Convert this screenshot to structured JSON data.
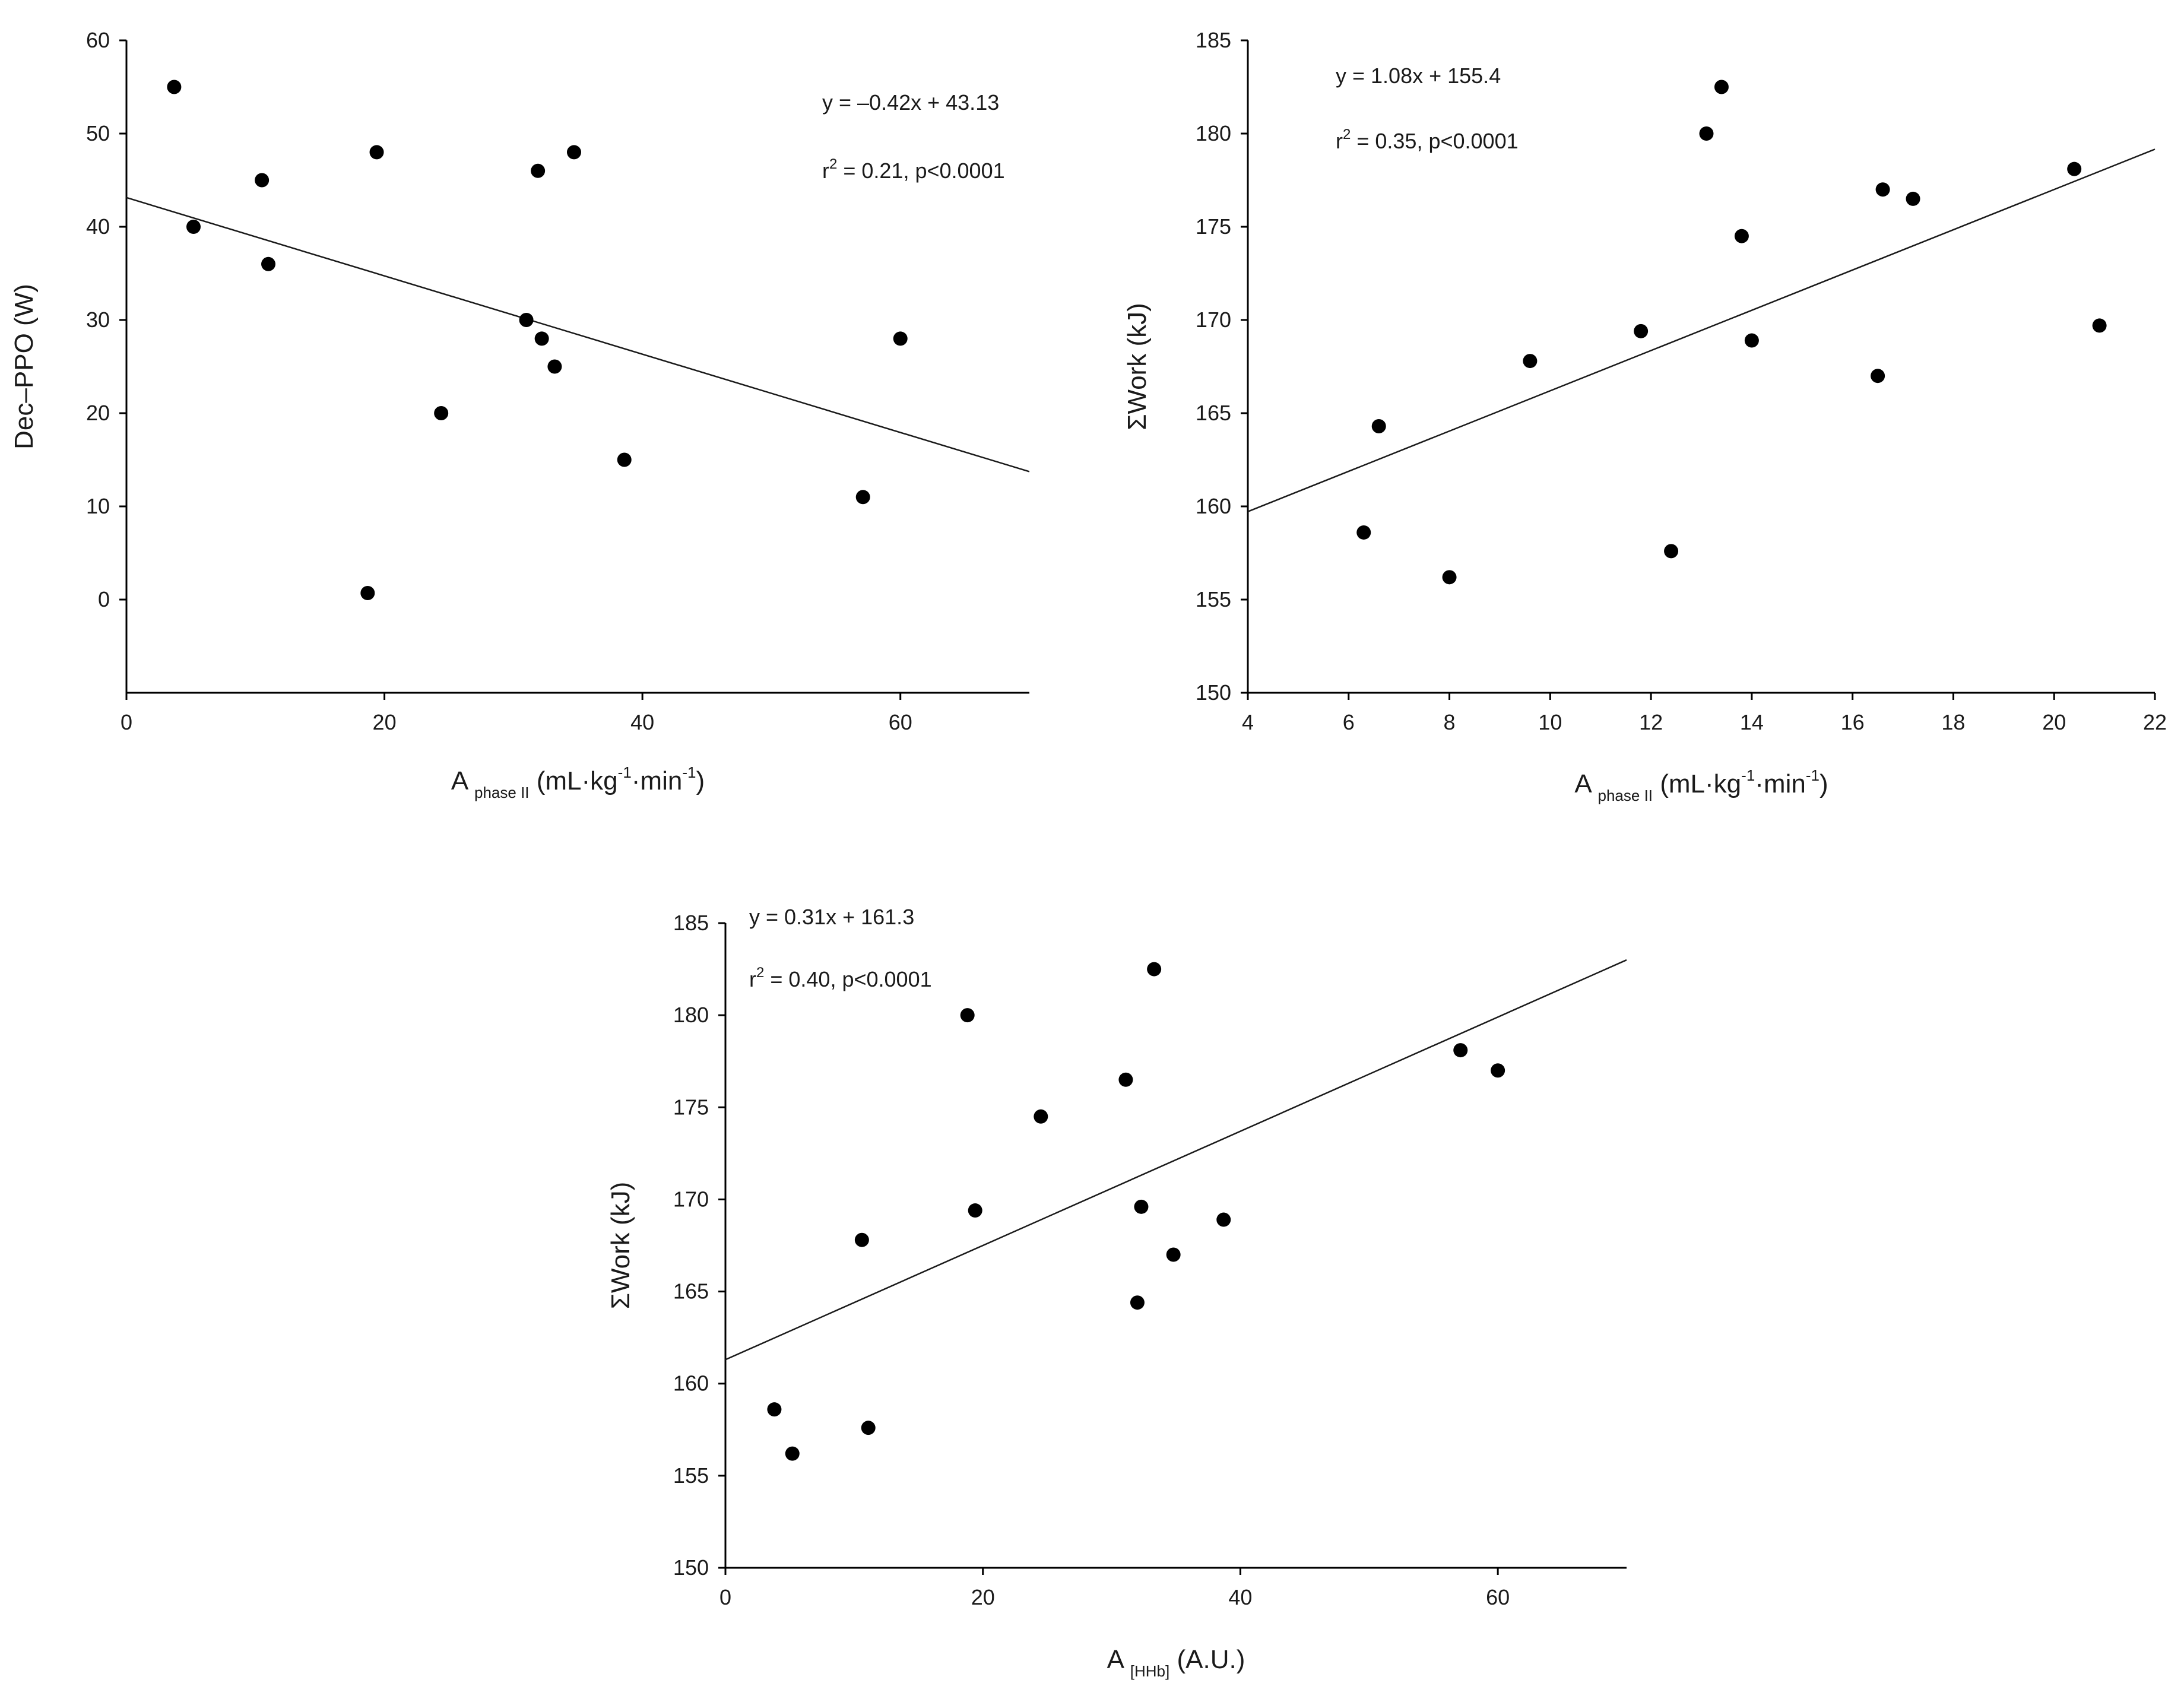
{
  "chart_data": [
    {
      "type": "scatter",
      "title": "",
      "xlabel": {
        "main": "A",
        "sub": "phase II",
        "unit": "(mL·kg",
        "sup1": "-1",
        "mid": "·min",
        "sup2": "-1",
        "end": ")"
      },
      "ylabel": "Dec–PPO (W)",
      "xlim": [
        0,
        70
      ],
      "ylim": [
        -10,
        60
      ],
      "xticks": [
        0,
        20,
        40,
        60
      ],
      "yticks": [
        0,
        10,
        20,
        30,
        40,
        50,
        60
      ],
      "equation": "y = –0.42x + 43.13",
      "r2_prefix": "r",
      "r2_sup": "2",
      "r2_rest": " = 0.21, p<0.0001",
      "fit": {
        "slope": -0.42,
        "intercept": 43.13,
        "x_range": [
          0,
          70
        ]
      },
      "points": [
        [
          3.7,
          55
        ],
        [
          5.2,
          40
        ],
        [
          10.5,
          45
        ],
        [
          11,
          36
        ],
        [
          18.7,
          0.7
        ],
        [
          19.4,
          48
        ],
        [
          24.4,
          20
        ],
        [
          31,
          30
        ],
        [
          31.9,
          46
        ],
        [
          32.2,
          28
        ],
        [
          33.2,
          25
        ],
        [
          34.7,
          48
        ],
        [
          38.6,
          15
        ],
        [
          57.1,
          11
        ],
        [
          60,
          28
        ]
      ]
    },
    {
      "type": "scatter",
      "title": "",
      "xlabel": {
        "main": "A",
        "sub": "phase II",
        "unit": "(mL·kg",
        "sup1": "-1",
        "mid": "·min",
        "sup2": "-1",
        "end": ")"
      },
      "ylabel": "ΣWork (kJ)",
      "xlim": [
        4,
        22
      ],
      "ylim": [
        150,
        185
      ],
      "xticks": [
        4,
        6,
        8,
        10,
        12,
        14,
        16,
        18,
        20,
        22
      ],
      "yticks": [
        150,
        155,
        160,
        165,
        170,
        175,
        180,
        185
      ],
      "equation": "y = 1.08x + 155.4",
      "r2_prefix": "r",
      "r2_sup": "2",
      "r2_rest": " = 0.35, p<0.0001",
      "fit": {
        "slope": 1.08,
        "intercept": 155.4,
        "x_range": [
          4,
          22
        ]
      },
      "points": [
        [
          6.3,
          158.6
        ],
        [
          6.6,
          164.3
        ],
        [
          8,
          156.2
        ],
        [
          9.6,
          167.8
        ],
        [
          11.8,
          169.4
        ],
        [
          12.4,
          157.6
        ],
        [
          13.1,
          180
        ],
        [
          13.4,
          182.5
        ],
        [
          13.8,
          174.5
        ],
        [
          14,
          168.9
        ],
        [
          16.5,
          167
        ],
        [
          16.6,
          177
        ],
        [
          17.2,
          176.5
        ],
        [
          20.4,
          178.1
        ],
        [
          20.9,
          169.7
        ]
      ]
    },
    {
      "type": "scatter",
      "title": "",
      "xlabel": {
        "main": "A",
        "sub": "[HHb]",
        "unit": "(A.U.)",
        "sup1": "",
        "mid": "",
        "sup2": "",
        "end": ""
      },
      "ylabel": "ΣWork (kJ)",
      "xlim": [
        0,
        70
      ],
      "ylim": [
        150,
        185
      ],
      "xticks": [
        0,
        20,
        40,
        60
      ],
      "yticks": [
        150,
        155,
        160,
        165,
        170,
        175,
        180,
        185
      ],
      "equation": "y = 0.31x + 161.3",
      "r2_prefix": "r",
      "r2_sup": "2",
      "r2_rest": " = 0.40, p<0.0001",
      "fit": {
        "slope": 0.31,
        "intercept": 161.3,
        "x_range": [
          0,
          70
        ]
      },
      "points": [
        [
          3.8,
          158.6
        ],
        [
          5.2,
          156.2
        ],
        [
          10.6,
          167.8
        ],
        [
          11.1,
          157.6
        ],
        [
          18.8,
          180
        ],
        [
          19.4,
          169.4
        ],
        [
          24.5,
          174.5
        ],
        [
          31.1,
          176.5
        ],
        [
          32.0,
          164.4
        ],
        [
          32.3,
          169.6
        ],
        [
          33.3,
          182.5
        ],
        [
          34.8,
          167
        ],
        [
          38.7,
          168.9
        ],
        [
          57.1,
          178.1
        ],
        [
          60,
          177
        ]
      ]
    }
  ]
}
